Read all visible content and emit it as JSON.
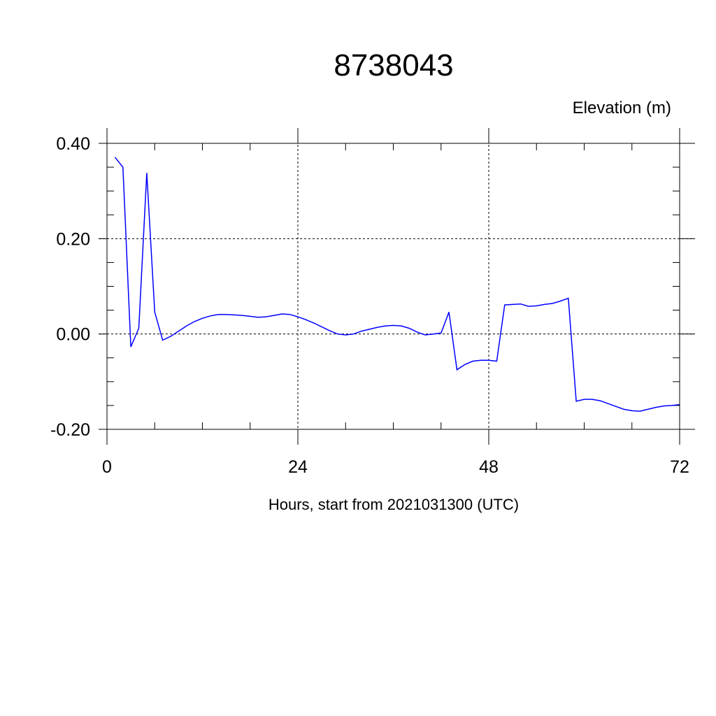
{
  "chart_data": {
    "type": "line",
    "title": "8738043",
    "ylabel": "Elevation (m)",
    "xlabel": "Hours, start from 2021031300 (UTC)",
    "xlim": [
      0,
      72
    ],
    "ylim": [
      -0.2,
      0.4
    ],
    "x_ticks": [
      0,
      24,
      48,
      72
    ],
    "x_tick_labels": [
      "0",
      "24",
      "48",
      "72"
    ],
    "y_ticks": [
      0.4,
      0.2,
      0.0,
      -0.2
    ],
    "y_tick_labels": [
      "0.40",
      "0.20",
      "0.00",
      "-0.20"
    ],
    "x_minor_step": 6,
    "y_minor_step": 0.05,
    "grid": true,
    "grid_style": "dashed",
    "line_color": "#0000ff",
    "series": [
      {
        "x": [
          1,
          2,
          3,
          4,
          5,
          6,
          7,
          8,
          9,
          10,
          11,
          12,
          13,
          14,
          15,
          16,
          17,
          18,
          19,
          20,
          21,
          22,
          23,
          24,
          25,
          26,
          27,
          28,
          29,
          30,
          31,
          32,
          33,
          34,
          35,
          36,
          37,
          38,
          39,
          40,
          41,
          42,
          43,
          44,
          45,
          46,
          47,
          48,
          49,
          50,
          51,
          52,
          53,
          54,
          55,
          56,
          57,
          58,
          59,
          60,
          61,
          62,
          63,
          64,
          65,
          66,
          67,
          68,
          69,
          70,
          71,
          72
        ],
        "values": [
          0.371,
          0.35,
          -0.027,
          0.012,
          0.338,
          0.046,
          -0.013,
          -0.005,
          0.006,
          0.017,
          0.026,
          0.033,
          0.038,
          0.041,
          0.041,
          0.04,
          0.039,
          0.037,
          0.035,
          0.036,
          0.039,
          0.042,
          0.041,
          0.036,
          0.03,
          0.023,
          0.015,
          0.007,
          0.0,
          -0.002,
          0.0,
          0.006,
          0.01,
          0.014,
          0.017,
          0.018,
          0.017,
          0.012,
          0.004,
          -0.002,
          0.0,
          0.002,
          0.046,
          -0.075,
          -0.064,
          -0.057,
          -0.055,
          -0.055,
          -0.057,
          0.061,
          0.062,
          0.063,
          0.058,
          0.059,
          0.062,
          0.064,
          0.069,
          0.075,
          -0.141,
          -0.137,
          -0.137,
          -0.14,
          -0.146,
          -0.152,
          -0.158,
          -0.161,
          -0.162,
          -0.158,
          -0.154,
          -0.151,
          -0.15,
          -0.148
        ]
      }
    ]
  }
}
